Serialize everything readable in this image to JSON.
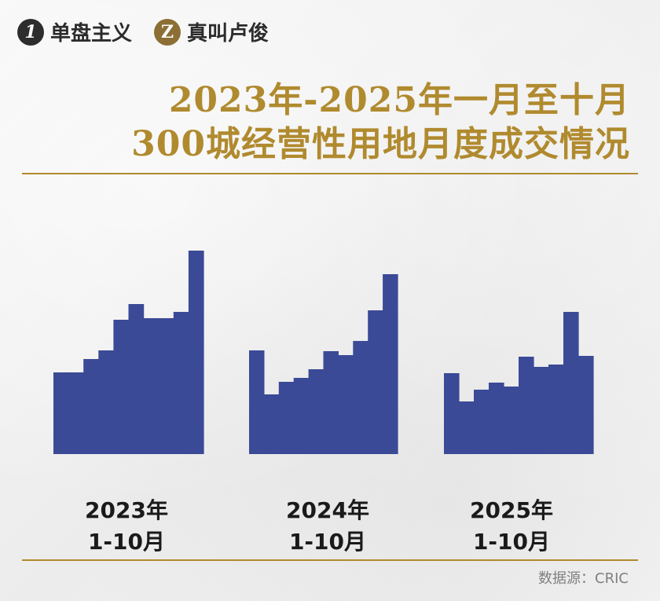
{
  "brand": {
    "left": {
      "badge": "1",
      "name": "单盘主义"
    },
    "right": {
      "badge": "Z",
      "name": "真叫卢俊"
    }
  },
  "title": {
    "line1": "2023年-2025年一月至十月",
    "line2": "300城经营性用地月度成交情况"
  },
  "colors": {
    "title": "#b08a2e",
    "bar": "#3b4a96",
    "rule": "#b08a2e"
  },
  "chart_data": [
    {
      "type": "bar",
      "label_year": "2023年",
      "label_range": "1-10月",
      "categories": [
        "1",
        "2",
        "3",
        "4",
        "5",
        "6",
        "7",
        "8",
        "9",
        "10"
      ],
      "values": [
        104,
        104,
        121,
        132,
        171,
        191,
        173,
        173,
        181,
        259
      ],
      "ylim": [
        0,
        260
      ]
    },
    {
      "type": "bar",
      "label_year": "2024年",
      "label_range": "1-10月",
      "categories": [
        "1",
        "2",
        "3",
        "4",
        "5",
        "6",
        "7",
        "8",
        "9",
        "10"
      ],
      "values": [
        132,
        76,
        92,
        97,
        108,
        131,
        126,
        144,
        183,
        229
      ],
      "ylim": [
        0,
        260
      ]
    },
    {
      "type": "bar",
      "label_year": "2025年",
      "label_range": "1-10月",
      "categories": [
        "1",
        "2",
        "3",
        "4",
        "5",
        "6",
        "7",
        "8",
        "9",
        "10"
      ],
      "values": [
        103,
        67,
        82,
        91,
        86,
        124,
        111,
        114,
        181,
        125
      ],
      "ylim": [
        0,
        260
      ]
    }
  ],
  "source": "数据源：CRIC"
}
